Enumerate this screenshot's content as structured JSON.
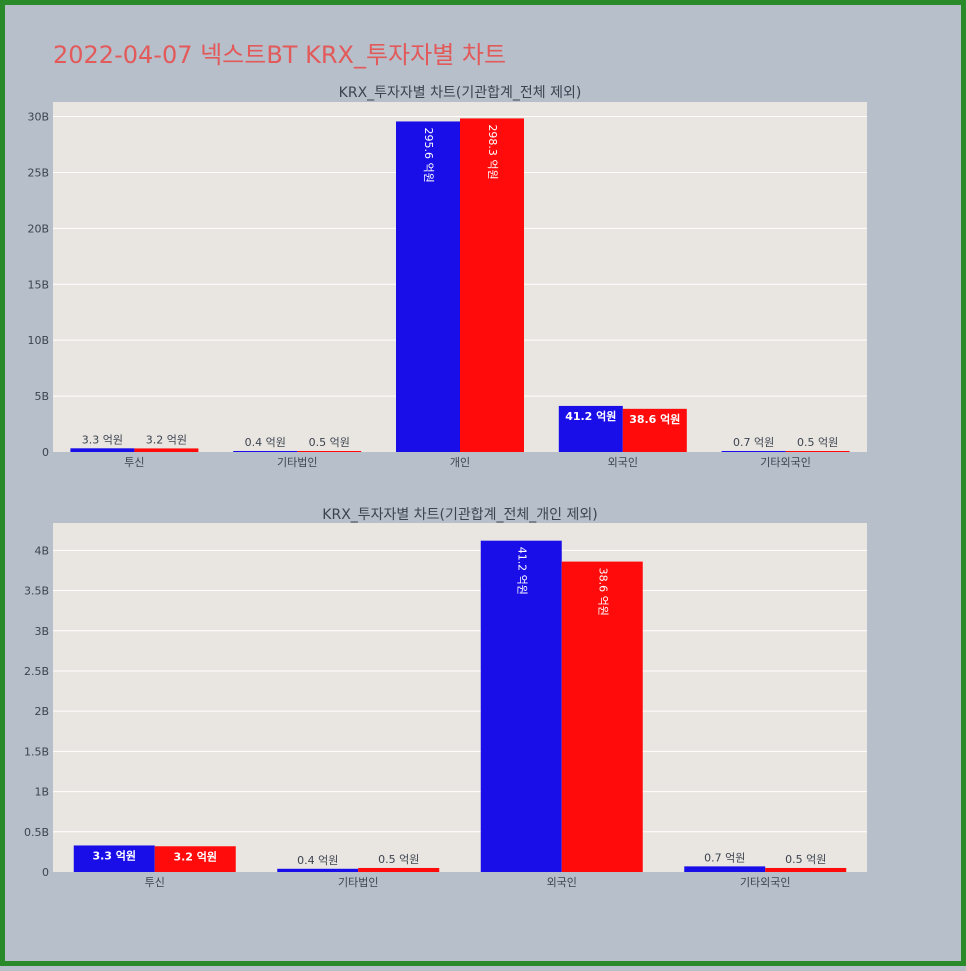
{
  "page_title": "2022-04-07 넥스트BT KRX_투자자별 차트",
  "colors": {
    "series_a": "#1a0ee8",
    "series_b": "#ff0b0b",
    "plot_bg": "#e9e5e0",
    "page_bg": "#b7bfcb",
    "border": "#2a8a2a",
    "title": "#e25a5a"
  },
  "chart_data": [
    {
      "type": "bar",
      "title": "KRX_투자자별 차트(기관합계_전체 제외)",
      "categories": [
        "투신",
        "기타법인",
        "개인",
        "외국인",
        "기타외국인"
      ],
      "series": [
        {
          "values": [
            330000000,
            40000000,
            29560000000,
            4120000000,
            70000000
          ],
          "labels": [
            "3.3 억원",
            "0.4 억원",
            "295.6 억원",
            "41.2 억원",
            "0.7 억원"
          ]
        },
        {
          "values": [
            320000000,
            50000000,
            29830000000,
            3860000000,
            50000000
          ],
          "labels": [
            "3.2 억원",
            "0.5 억원",
            "298.3 억원",
            "38.6 억원",
            "0.5 억원"
          ]
        }
      ],
      "yticks": [
        0,
        5000000000,
        10000000000,
        15000000000,
        20000000000,
        25000000000,
        30000000000
      ],
      "ytick_labels": [
        "0",
        "5B",
        "10B",
        "15B",
        "20B",
        "25B",
        "30B"
      ],
      "ylim": [
        0,
        31300000000
      ],
      "grid": true
    },
    {
      "type": "bar",
      "title": "KRX_투자자별 차트(기관합계_전체_개인 제외)",
      "categories": [
        "투신",
        "기타법인",
        "외국인",
        "기타외국인"
      ],
      "series": [
        {
          "values": [
            330000000,
            40000000,
            4120000000,
            70000000
          ],
          "labels": [
            "3.3 억원",
            "0.4 억원",
            "41.2 억원",
            "0.7 억원"
          ]
        },
        {
          "values": [
            320000000,
            50000000,
            3860000000,
            50000000
          ],
          "labels": [
            "3.2 억원",
            "0.5 억원",
            "38.6 억원",
            "0.5 억원"
          ]
        }
      ],
      "yticks": [
        0,
        500000000,
        1000000000,
        1500000000,
        2000000000,
        2500000000,
        3000000000,
        3500000000,
        4000000000
      ],
      "ytick_labels": [
        "0",
        "0.5B",
        "1B",
        "1.5B",
        "2B",
        "2.5B",
        "3B",
        "3.5B",
        "4B"
      ],
      "ylim": [
        0,
        4340000000
      ],
      "grid": true
    }
  ]
}
